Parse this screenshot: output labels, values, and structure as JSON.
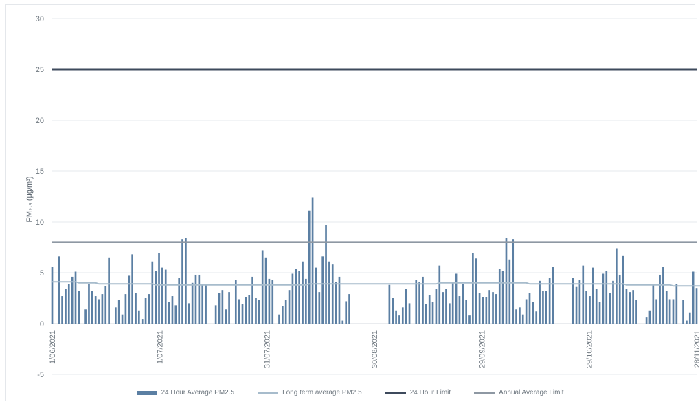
{
  "chart_data": {
    "type": "bar",
    "ylabel": "PM₂.₅ (μg/m³)",
    "ylim": [
      -5,
      30
    ],
    "yticks": [
      -5,
      0,
      5,
      10,
      15,
      20,
      25,
      30
    ],
    "grid": true,
    "legend_position": "bottom",
    "x_start": "1/06/2021",
    "x_end": "28/11/2021",
    "xtick_labels": [
      "1/06/2021",
      "1/07/2021",
      "31/07/2021",
      "30/08/2021",
      "29/09/2021",
      "29/10/2021",
      "28/11/2021"
    ],
    "series": [
      {
        "name": "24 Hour Average PM2.5",
        "kind": "bar",
        "color": "#5b7fa3",
        "values": [
          5.6,
          0,
          6.6,
          2.7,
          3.4,
          3.9,
          4.6,
          5.1,
          3.2,
          0,
          1.4,
          3.9,
          3.2,
          2.7,
          2.4,
          2.9,
          3.7,
          6.5,
          0,
          1.6,
          2.3,
          0.9,
          2.9,
          4.7,
          6.8,
          3.0,
          1.3,
          0.4,
          2.5,
          2.9,
          6.1,
          5.2,
          6.9,
          5.5,
          5.3,
          2.1,
          2.7,
          1.8,
          4.5,
          8.3,
          8.4,
          2.0,
          4.0,
          4.8,
          4.8,
          3.9,
          3.9,
          0,
          0,
          1.8,
          3.0,
          3.3,
          1.4,
          3.1,
          0,
          4.3,
          2.4,
          1.9,
          2.6,
          2.8,
          4.6,
          2.5,
          2.3,
          7.2,
          6.5,
          4.4,
          4.3,
          0,
          0.9,
          1.7,
          2.3,
          3.3,
          4.9,
          5.4,
          5.2,
          6.1,
          4.4,
          11.1,
          12.4,
          5.5,
          3.1,
          6.6,
          9.7,
          6.1,
          5.8,
          4.1,
          4.6,
          0.3,
          2.2,
          2.9,
          0,
          0,
          0,
          0,
          0,
          0,
          0,
          0,
          0,
          0,
          0,
          3.8,
          2.5,
          1.3,
          0.8,
          1.6,
          3.4,
          2.0,
          0,
          4.3,
          4.1,
          4.6,
          1.9,
          2.8,
          2.1,
          3.4,
          5.7,
          3.1,
          3.4,
          2.0,
          4.0,
          4.9,
          2.7,
          3.9,
          2.3,
          0.8,
          6.9,
          6.4,
          3.0,
          2.6,
          2.6,
          3.3,
          3.1,
          2.9,
          5.4,
          5.2,
          8.4,
          6.3,
          8.3,
          1.4,
          1.6,
          0.9,
          2.4,
          3.0,
          2.1,
          1.2,
          4.2,
          3.2,
          3.2,
          4.5,
          5.6,
          0,
          0,
          0,
          0,
          0,
          4.5,
          3.6,
          4.3,
          5.7,
          3.2,
          2.7,
          5.5,
          3.4,
          2.1,
          4.9,
          5.2,
          3.0,
          4.2,
          7.4,
          4.8,
          6.7,
          3.4,
          3.1,
          3.3,
          2.3,
          0,
          0,
          0.6,
          1.3,
          3.9,
          2.4,
          4.8,
          5.6,
          3.2,
          2.4,
          2.4,
          3.9,
          0,
          2.3,
          0.3,
          1.1,
          5.1,
          3.5
        ]
      },
      {
        "name": "Long term average PM2.5",
        "kind": "line",
        "color": "#a7bccc",
        "values": [
          4.1,
          4.1,
          4.1,
          4.1,
          4.1,
          4.1,
          4.1,
          4.1,
          4.0,
          4.0,
          4.0,
          4.0,
          4.0,
          4.0,
          3.9,
          3.9,
          3.9,
          3.9,
          3.9,
          3.9,
          3.9,
          3.9,
          3.9,
          3.9,
          3.9,
          3.9,
          3.9,
          3.9,
          3.9,
          3.9,
          3.9,
          3.8,
          3.8,
          3.8,
          3.8,
          3.8,
          3.8,
          3.8,
          3.8,
          3.8,
          3.8,
          3.8,
          3.8,
          3.8,
          3.8,
          3.8,
          3.8,
          3.8,
          3.8,
          3.8,
          3.8,
          3.8,
          3.8,
          3.8,
          3.8,
          3.8,
          3.8,
          3.8,
          3.8,
          3.8,
          3.8,
          3.8,
          3.8,
          3.8,
          3.8,
          3.8,
          3.8,
          3.8,
          3.8,
          3.8,
          3.8,
          3.8,
          3.8,
          3.8,
          3.8,
          3.8,
          3.8,
          3.9,
          3.9,
          3.9,
          3.9,
          3.9,
          3.9,
          3.9,
          3.9,
          3.9,
          3.9,
          3.9,
          3.9,
          3.9,
          3.9,
          3.9,
          3.9,
          3.9,
          3.9,
          3.9,
          3.9,
          3.9,
          3.9,
          3.9,
          3.9,
          3.9,
          3.9,
          3.9,
          3.9,
          3.9,
          3.9,
          3.9,
          3.9,
          3.9,
          3.9,
          3.9,
          3.9,
          3.9,
          3.9,
          3.9,
          4.0,
          4.0,
          4.0,
          4.0,
          4.0,
          4.0,
          4.0,
          4.0,
          4.0,
          4.0,
          4.0,
          4.0,
          4.0,
          4.0,
          4.0,
          4.0,
          4.0,
          4.0,
          4.0,
          4.0,
          4.0,
          4.0,
          4.0,
          4.0,
          4.0,
          4.0,
          4.0,
          3.9,
          3.9,
          3.9,
          3.9,
          3.9,
          3.9,
          3.9,
          3.9,
          3.9,
          3.9,
          3.9,
          3.9,
          3.9,
          3.9,
          3.9,
          3.9,
          3.9,
          3.9,
          3.9,
          3.9,
          3.9,
          3.9,
          3.9,
          3.9,
          3.9,
          3.9,
          3.9,
          3.9,
          3.9,
          3.8,
          3.8,
          3.8,
          3.8,
          3.8,
          3.8,
          3.8,
          3.8,
          3.8,
          3.8,
          3.8,
          3.8,
          3.8,
          3.8,
          3.7,
          3.7,
          3.7,
          3.7,
          3.7,
          3.7,
          3.7,
          3.7,
          3.7,
          3.7
        ]
      },
      {
        "name": "24 Hour Limit",
        "kind": "hline",
        "color": "#3e4a5c",
        "value": 25
      },
      {
        "name": "Annual Average Limit",
        "kind": "hline",
        "color": "#8e98a3",
        "value": 8
      }
    ]
  }
}
